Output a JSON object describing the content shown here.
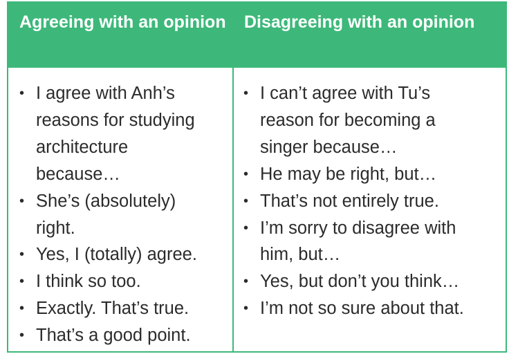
{
  "table": {
    "header_color": "#3db87a",
    "columns": [
      {
        "title": "Agreeing with an opinion",
        "items": [
          "I agree with Anh’s reasons for studying architecture because…",
          "She’s (absolutely) right.",
          "Yes, I (totally) agree.",
          "I think so too.",
          "Exactly.  That’s true.",
          "That’s a good point."
        ]
      },
      {
        "title": "Disagreeing with an opinion",
        "items": [
          "I can’t agree with Tu’s reason for becoming a singer because…",
          "He may be right, but…",
          "That’s not entirely true.",
          "I’m sorry to disagree with him, but…",
          "Yes, but don’t you think…",
          "I’m not so sure about that."
        ]
      }
    ]
  }
}
